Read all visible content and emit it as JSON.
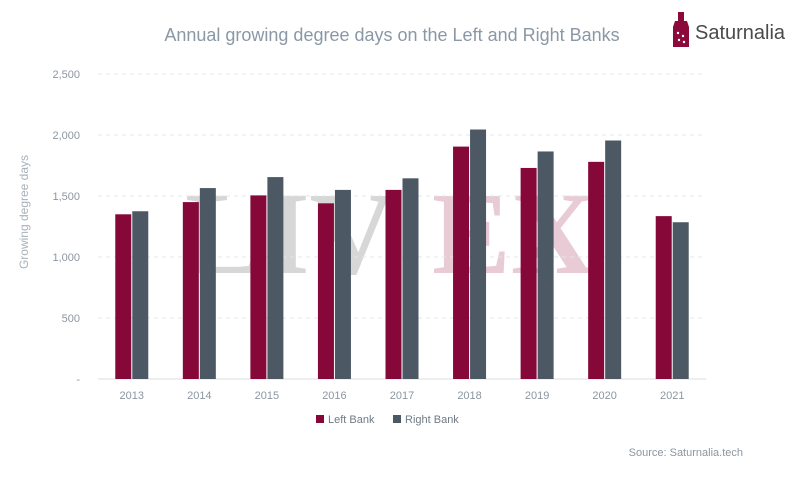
{
  "brand": {
    "name": "Saturnalia",
    "icon": "wine-bottle-icon",
    "color": "#8b0a3a"
  },
  "watermark": {
    "left": "LIV",
    "right": "EX"
  },
  "source": "Source: Saturnalia.tech",
  "colors": {
    "left_bank": "#850838",
    "right_bank": "#4c5965",
    "watermark_left": "#d3d3d3",
    "watermark_right": "#e6c5cf"
  },
  "chart_data": {
    "type": "bar",
    "title": "Annual growing degree days on the Left and Right Banks",
    "ylabel": "Growing degree days",
    "xlabel": "",
    "categories": [
      "2013",
      "2014",
      "2015",
      "2016",
      "2017",
      "2018",
      "2019",
      "2020",
      "2021"
    ],
    "series": [
      {
        "name": "Left Bank",
        "color": "#850838",
        "values": [
          1350,
          1450,
          1505,
          1440,
          1550,
          1905,
          1730,
          1780,
          1335
        ]
      },
      {
        "name": "Right Bank",
        "color": "#4c5965",
        "values": [
          1375,
          1565,
          1655,
          1550,
          1645,
          2045,
          1865,
          1955,
          1285
        ]
      }
    ],
    "ylim": [
      0,
      2500
    ],
    "yticks": [
      0,
      500,
      1000,
      1500,
      2000,
      2500
    ],
    "ytick_labels": [
      "-",
      "500",
      "1,000",
      "1,500",
      "2,000",
      "2,500"
    ],
    "grid": true,
    "legend": "bottom-center"
  }
}
